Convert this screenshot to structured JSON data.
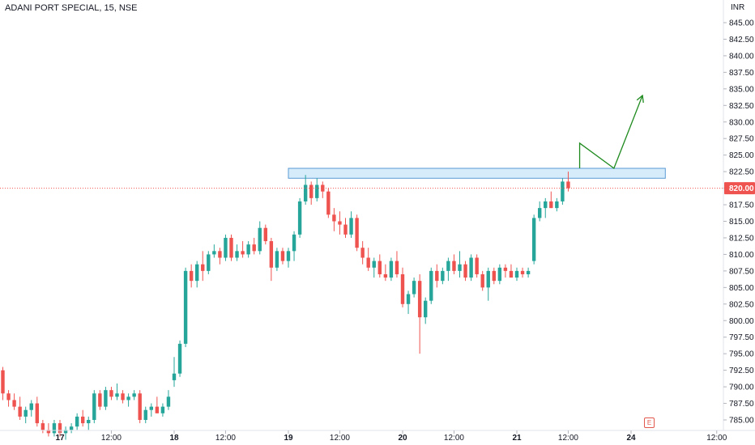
{
  "header": {
    "symbol": "ADANI PORT SPECIAL",
    "interval": "15",
    "exchange": "NSE",
    "title_text": "ADANI PORT SPECIAL, 15, NSE"
  },
  "currency": "INR",
  "last_price": "820.00",
  "event_badge": "E",
  "colors": {
    "up": "#26a69a",
    "down": "#ef5350",
    "zone_fill": "#d6ecfb",
    "zone_stroke": "#5b9bd5",
    "arrow": "#1e8a1e",
    "price_tag": "#ef5350"
  },
  "chart_data": {
    "type": "candlestick",
    "interval": "15",
    "ylim": [
      784,
      847
    ],
    "y_ticks": [
      "785.00",
      "787.50",
      "790.00",
      "792.50",
      "795.00",
      "797.50",
      "800.00",
      "802.50",
      "805.00",
      "807.50",
      "810.00",
      "812.50",
      "815.00",
      "817.50",
      "820.00",
      "822.50",
      "825.00",
      "827.50",
      "830.00",
      "832.50",
      "835.00",
      "837.50",
      "840.00",
      "842.50",
      "845.00"
    ],
    "x_ticks": [
      {
        "label": "17",
        "bar": 10
      },
      {
        "label": "12:00",
        "bar": 19
      },
      {
        "label": "18",
        "bar": 30
      },
      {
        "label": "12:00",
        "bar": 39
      },
      {
        "label": "19",
        "bar": 50
      },
      {
        "label": "12:00",
        "bar": 59
      },
      {
        "label": "20",
        "bar": 70
      },
      {
        "label": "12:00",
        "bar": 79
      },
      {
        "label": "21",
        "bar": 90
      },
      {
        "label": "12:00",
        "bar": 99
      },
      {
        "label": "24",
        "bar": 110
      },
      {
        "label": "12:00",
        "bar": 125
      }
    ],
    "last_price": 820.0,
    "candles": [
      [
        792.5,
        793.0,
        788.0,
        789.0
      ],
      [
        789.0,
        789.5,
        787.0,
        788.0
      ],
      [
        788.0,
        789.0,
        786.5,
        787.0
      ],
      [
        787.0,
        788.5,
        785.0,
        785.5
      ],
      [
        785.5,
        787.0,
        784.5,
        786.5
      ],
      [
        786.5,
        788.0,
        785.5,
        787.5
      ],
      [
        787.5,
        788.5,
        784.0,
        784.5
      ],
      [
        784.5,
        785.0,
        783.0,
        783.5
      ],
      [
        783.5,
        784.5,
        782.5,
        783.0
      ],
      [
        783.0,
        785.0,
        782.5,
        784.5
      ],
      [
        784.5,
        785.0,
        782.5,
        783.0
      ],
      [
        783.0,
        784.0,
        782.0,
        783.5
      ],
      [
        783.5,
        784.5,
        783.0,
        784.0
      ],
      [
        784.0,
        786.0,
        783.5,
        785.5
      ],
      [
        785.5,
        786.5,
        784.0,
        784.5
      ],
      [
        784.5,
        785.5,
        783.5,
        785.0
      ],
      [
        785.0,
        789.5,
        784.5,
        789.0
      ],
      [
        789.0,
        789.5,
        786.5,
        787.0
      ],
      [
        787.0,
        790.0,
        786.5,
        789.5
      ],
      [
        789.5,
        790.0,
        788.0,
        788.5
      ],
      [
        788.5,
        790.5,
        788.0,
        789.0
      ],
      [
        789.0,
        789.5,
        787.5,
        788.0
      ],
      [
        788.0,
        789.0,
        787.0,
        788.5
      ],
      [
        788.5,
        789.5,
        788.0,
        789.0
      ],
      [
        789.0,
        789.5,
        784.5,
        785.0
      ],
      [
        785.0,
        787.0,
        784.5,
        786.5
      ],
      [
        786.5,
        787.5,
        785.5,
        787.0
      ],
      [
        787.0,
        788.5,
        786.0,
        786.0
      ],
      [
        786.0,
        787.5,
        785.5,
        787.0
      ],
      [
        787.0,
        789.5,
        786.5,
        788.5
      ],
      [
        791.0,
        794.5,
        790.0,
        792.0
      ],
      [
        792.0,
        797.0,
        791.5,
        796.5
      ],
      [
        796.5,
        808.0,
        796.0,
        807.5
      ],
      [
        807.5,
        808.5,
        805.0,
        806.0
      ],
      [
        806.0,
        809.0,
        805.0,
        808.5
      ],
      [
        808.5,
        810.5,
        806.0,
        807.5
      ],
      [
        807.5,
        810.5,
        807.0,
        810.0
      ],
      [
        810.0,
        811.5,
        809.5,
        810.5
      ],
      [
        810.5,
        811.0,
        808.5,
        809.5
      ],
      [
        809.5,
        813.0,
        809.0,
        812.5
      ],
      [
        812.5,
        813.0,
        809.0,
        809.5
      ],
      [
        809.5,
        811.5,
        809.0,
        810.5
      ],
      [
        810.5,
        812.0,
        809.5,
        810.0
      ],
      [
        810.0,
        812.0,
        809.5,
        811.5
      ],
      [
        811.5,
        812.5,
        810.0,
        810.5
      ],
      [
        810.5,
        815.0,
        810.0,
        814.0
      ],
      [
        814.0,
        814.5,
        811.5,
        812.0
      ],
      [
        812.0,
        812.5,
        806.0,
        808.0
      ],
      [
        808.0,
        811.0,
        807.5,
        810.5
      ],
      [
        810.5,
        811.0,
        808.5,
        809.0
      ],
      [
        809.0,
        811.0,
        808.0,
        810.5
      ],
      [
        810.5,
        813.5,
        809.0,
        813.0
      ],
      [
        813.0,
        818.5,
        812.5,
        818.0
      ],
      [
        818.0,
        822.0,
        817.5,
        820.5
      ],
      [
        820.5,
        821.0,
        817.5,
        818.5
      ],
      [
        818.5,
        821.5,
        818.0,
        820.5
      ],
      [
        820.5,
        821.0,
        818.5,
        819.5
      ],
      [
        819.5,
        820.0,
        815.5,
        816.0
      ],
      [
        816.0,
        817.0,
        813.5,
        815.0
      ],
      [
        815.0,
        816.5,
        813.0,
        814.5
      ],
      [
        814.5,
        815.5,
        812.5,
        813.0
      ],
      [
        813.0,
        816.5,
        812.5,
        815.5
      ],
      [
        815.5,
        816.0,
        810.5,
        811.0
      ],
      [
        811.0,
        812.0,
        808.5,
        809.5
      ],
      [
        809.5,
        811.0,
        807.5,
        808.0
      ],
      [
        808.0,
        809.5,
        806.5,
        809.0
      ],
      [
        809.0,
        810.0,
        806.5,
        807.0
      ],
      [
        807.0,
        808.5,
        806.0,
        806.5
      ],
      [
        806.5,
        809.5,
        806.0,
        809.0
      ],
      [
        809.0,
        810.5,
        806.5,
        807.0
      ],
      [
        807.0,
        808.0,
        802.0,
        802.5
      ],
      [
        802.5,
        804.5,
        801.0,
        804.0
      ],
      [
        804.0,
        806.5,
        803.5,
        806.0
      ],
      [
        806.0,
        807.0,
        795.0,
        800.5
      ],
      [
        800.5,
        803.5,
        799.5,
        803.0
      ],
      [
        803.0,
        808.0,
        802.5,
        807.5
      ],
      [
        807.5,
        808.5,
        805.0,
        806.0
      ],
      [
        806.0,
        808.0,
        805.5,
        807.5
      ],
      [
        807.5,
        809.5,
        806.0,
        809.0
      ],
      [
        809.0,
        810.0,
        807.0,
        807.5
      ],
      [
        807.5,
        810.5,
        806.5,
        808.5
      ],
      [
        808.5,
        809.0,
        806.0,
        806.5
      ],
      [
        806.5,
        810.0,
        806.0,
        809.5
      ],
      [
        809.5,
        810.0,
        806.5,
        807.0
      ],
      [
        807.0,
        807.5,
        804.5,
        805.0
      ],
      [
        805.0,
        808.0,
        803.0,
        807.5
      ],
      [
        807.5,
        808.0,
        805.5,
        806.0
      ],
      [
        806.0,
        808.5,
        805.5,
        808.0
      ],
      [
        808.0,
        808.5,
        806.5,
        807.5
      ],
      [
        807.5,
        808.5,
        806.5,
        806.5
      ],
      [
        806.5,
        808.0,
        806.0,
        807.5
      ],
      [
        807.5,
        808.0,
        806.5,
        807.0
      ],
      [
        807.0,
        808.0,
        806.5,
        807.5
      ],
      [
        809.0,
        816.0,
        808.5,
        815.5
      ],
      [
        815.5,
        818.0,
        815.0,
        817.0
      ],
      [
        817.0,
        818.5,
        815.5,
        818.0
      ],
      [
        818.0,
        819.5,
        817.0,
        817.0
      ],
      [
        817.0,
        818.5,
        816.5,
        818.0
      ],
      [
        818.0,
        821.5,
        817.5,
        821.0
      ],
      [
        821.0,
        822.5,
        819.5,
        820.0
      ]
    ],
    "support_resistance_zone": {
      "from_bar": 50,
      "to_bar": 116,
      "low": 821.5,
      "high": 823.0
    },
    "projection_path": [
      {
        "bar": 101,
        "price": 823.0
      },
      {
        "bar": 101,
        "price": 826.8
      },
      {
        "bar": 107,
        "price": 823.0
      },
      {
        "bar": 112,
        "price": 834.0
      }
    ]
  }
}
